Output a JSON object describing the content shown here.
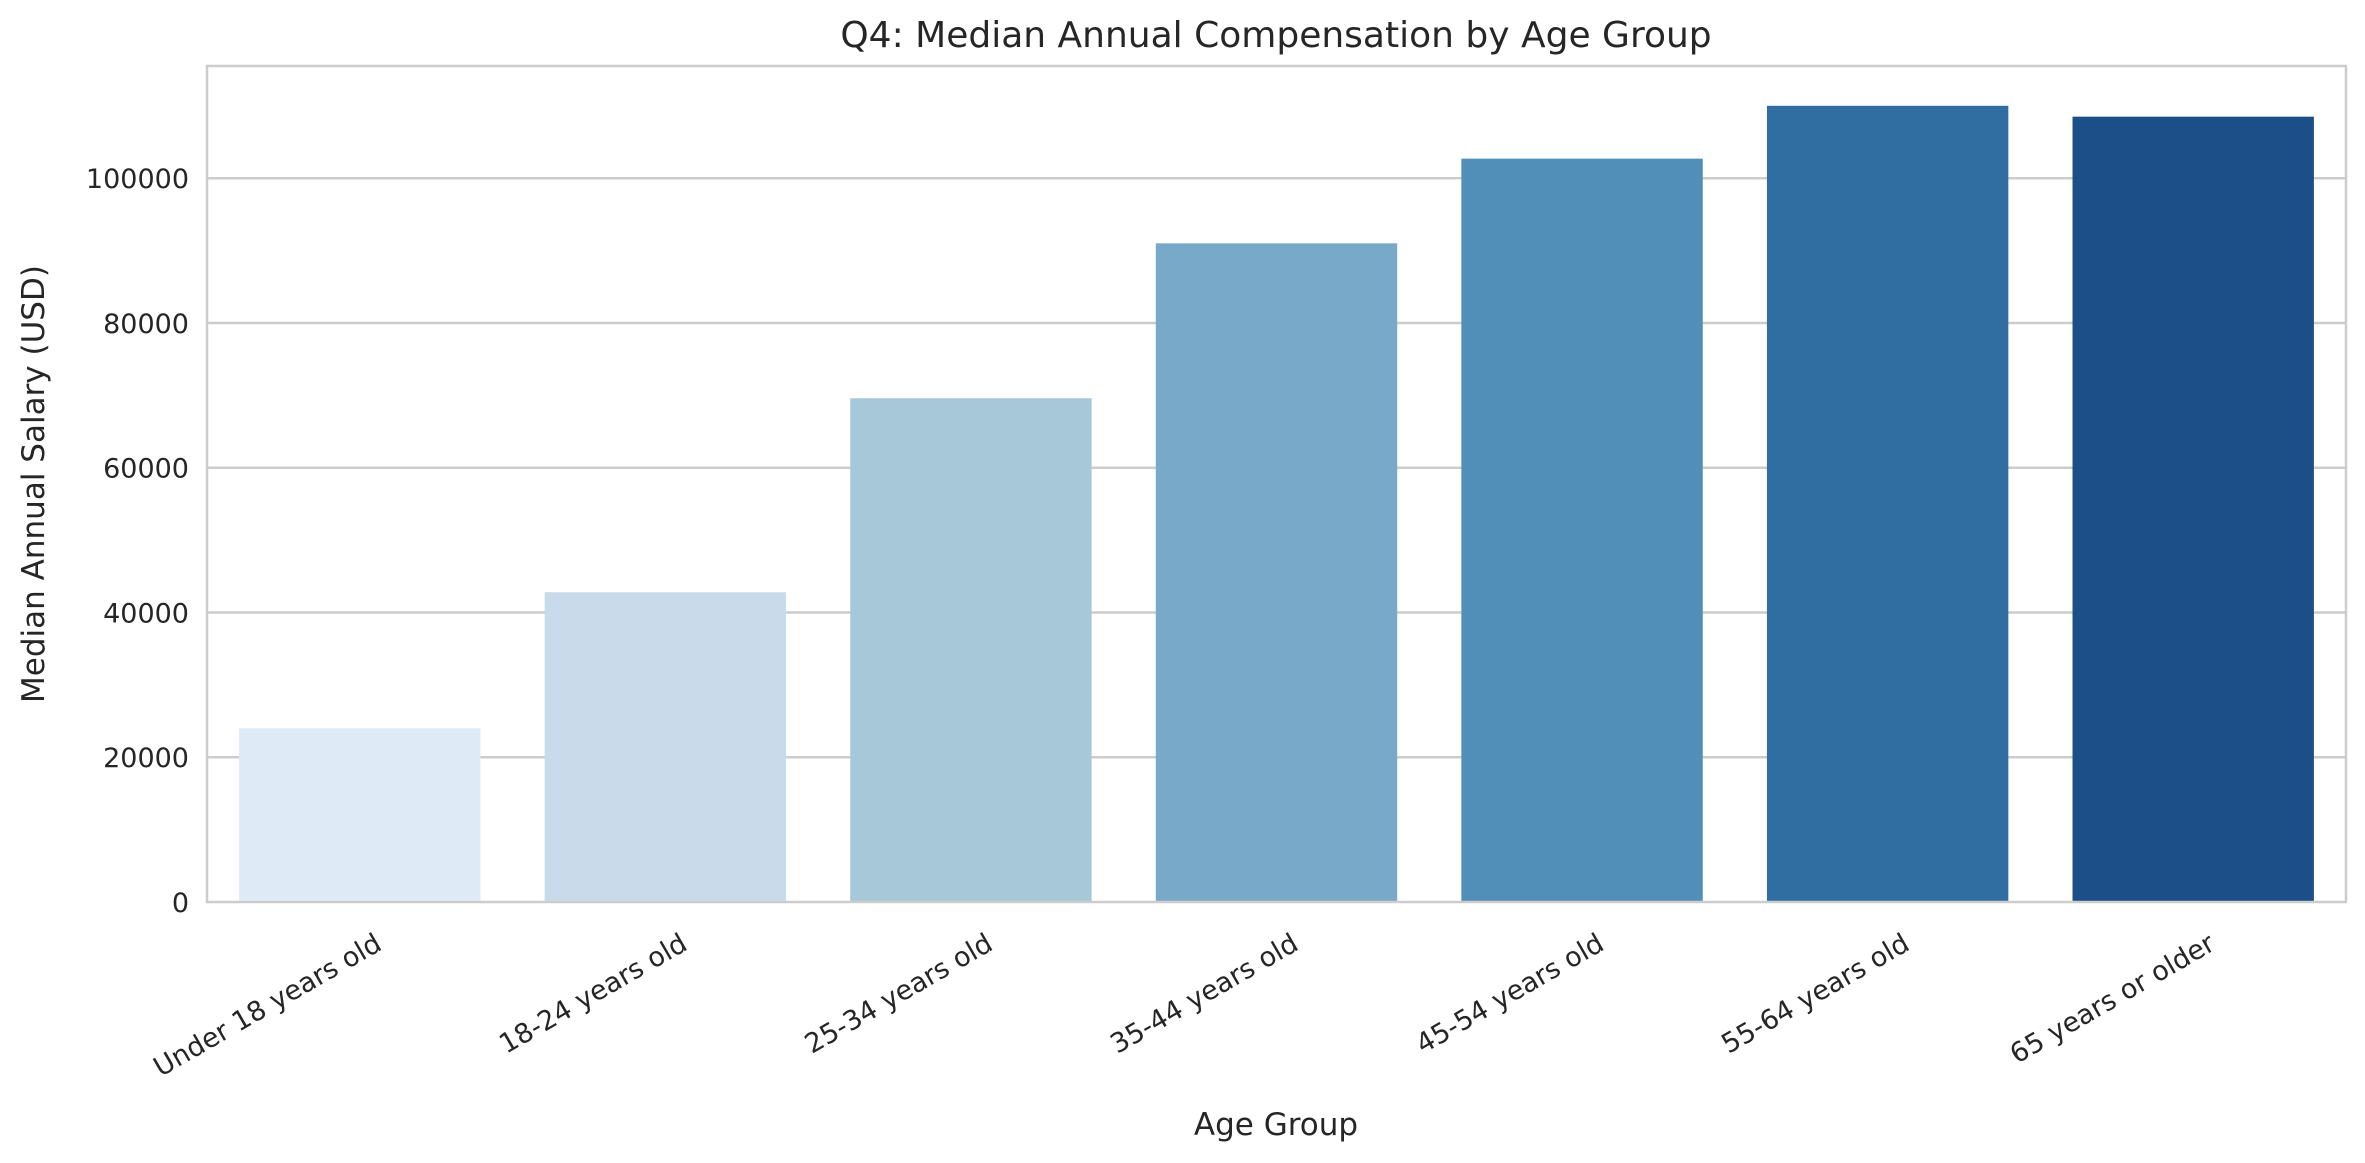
{
  "chart_data": {
    "type": "bar",
    "title": "Q4: Median Annual Compensation by Age Group",
    "xlabel": "Age Group",
    "ylabel": "Median Annual Salary (USD)",
    "categories": [
      "Under 18 years old",
      "18-24 years old",
      "25-34 years old",
      "35-44 years old",
      "45-54 years old",
      "55-64 years old",
      "65 years or older"
    ],
    "values": [
      24000,
      42800,
      69600,
      91000,
      102700,
      110000,
      108500
    ],
    "colors": [
      "#deebf7",
      "#c9dbea",
      "#a6c8d8",
      "#78a9c8",
      "#528fb8",
      "#306ea2",
      "#1c4f88"
    ],
    "ylim": [
      0,
      115500
    ],
    "yticks": [
      0,
      20000,
      40000,
      60000,
      80000,
      100000
    ],
    "ytick_labels": [
      "0",
      "20000",
      "40000",
      "60000",
      "80000",
      "100000"
    ],
    "grid": "horizontal",
    "legend": "none"
  }
}
